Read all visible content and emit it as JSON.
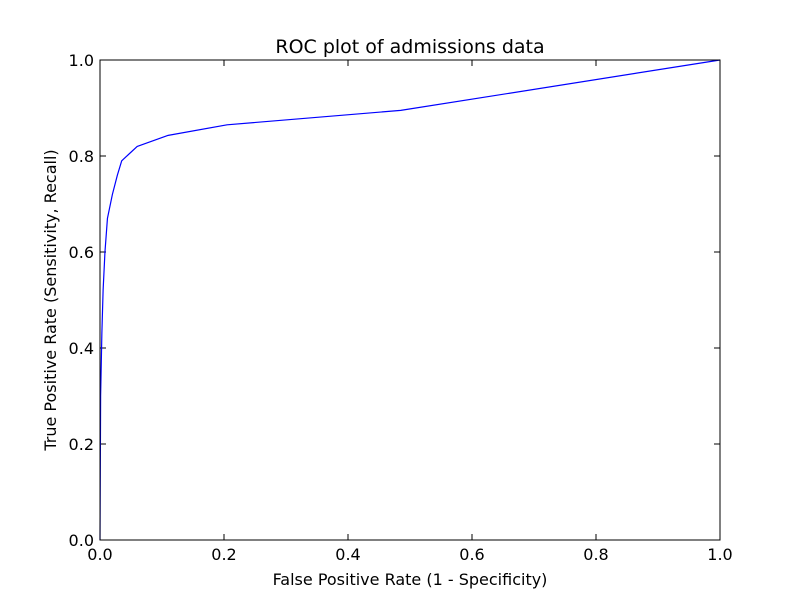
{
  "chart_data": {
    "type": "line",
    "title": "ROC plot of admissions data",
    "xlabel": "False Positive Rate (1 - Specificity)",
    "ylabel": "True Positive Rate (Sensitivity, Recall)",
    "xlim": [
      0.0,
      1.0
    ],
    "ylim": [
      0.0,
      1.0
    ],
    "xticks": [
      "0.0",
      "0.2",
      "0.4",
      "0.6",
      "0.8",
      "1.0"
    ],
    "yticks": [
      "0.0",
      "0.2",
      "0.4",
      "0.6",
      "0.8",
      "1.0"
    ],
    "grid": false,
    "legend": "none",
    "series": [
      {
        "color": "#0000ff",
        "x": [
          0.0,
          0.001,
          0.003,
          0.005,
          0.008,
          0.012,
          0.02,
          0.028,
          0.035,
          0.06,
          0.11,
          0.205,
          0.485,
          1.0
        ],
        "y": [
          0.0,
          0.3,
          0.43,
          0.52,
          0.6,
          0.67,
          0.72,
          0.76,
          0.79,
          0.82,
          0.843,
          0.865,
          0.895,
          1.0
        ]
      }
    ]
  }
}
